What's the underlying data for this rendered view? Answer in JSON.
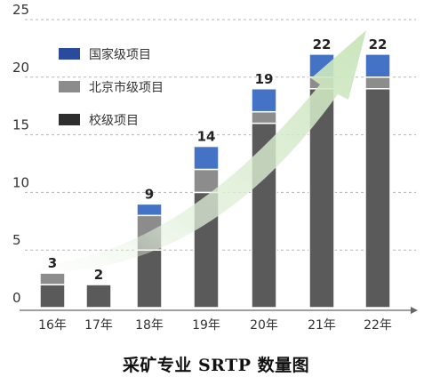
{
  "chart_data": {
    "type": "bar",
    "stacked": true,
    "title": "采矿专业 SRTP 数量图",
    "categories": [
      "16年",
      "17年",
      "18年",
      "19年",
      "20年",
      "21年",
      "22年"
    ],
    "series": [
      {
        "name": "校级项目",
        "color": "#5a5a5a",
        "values": [
          2,
          2,
          5,
          10,
          16,
          19,
          19
        ]
      },
      {
        "name": "北京市级项目",
        "color": "#8c8c8c",
        "values": [
          1,
          0,
          3,
          2,
          1,
          1,
          1
        ]
      },
      {
        "name": "国家级项目",
        "color": "#4472c4",
        "values": [
          0,
          0,
          1,
          2,
          2,
          2,
          2
        ]
      }
    ],
    "totals": [
      3,
      2,
      9,
      14,
      19,
      22,
      22
    ],
    "y_ticks": [
      0,
      5,
      10,
      15,
      20,
      25
    ],
    "ylim": [
      0,
      25
    ],
    "grid": true,
    "legend_position": "top-left",
    "trend_arrow": true
  }
}
